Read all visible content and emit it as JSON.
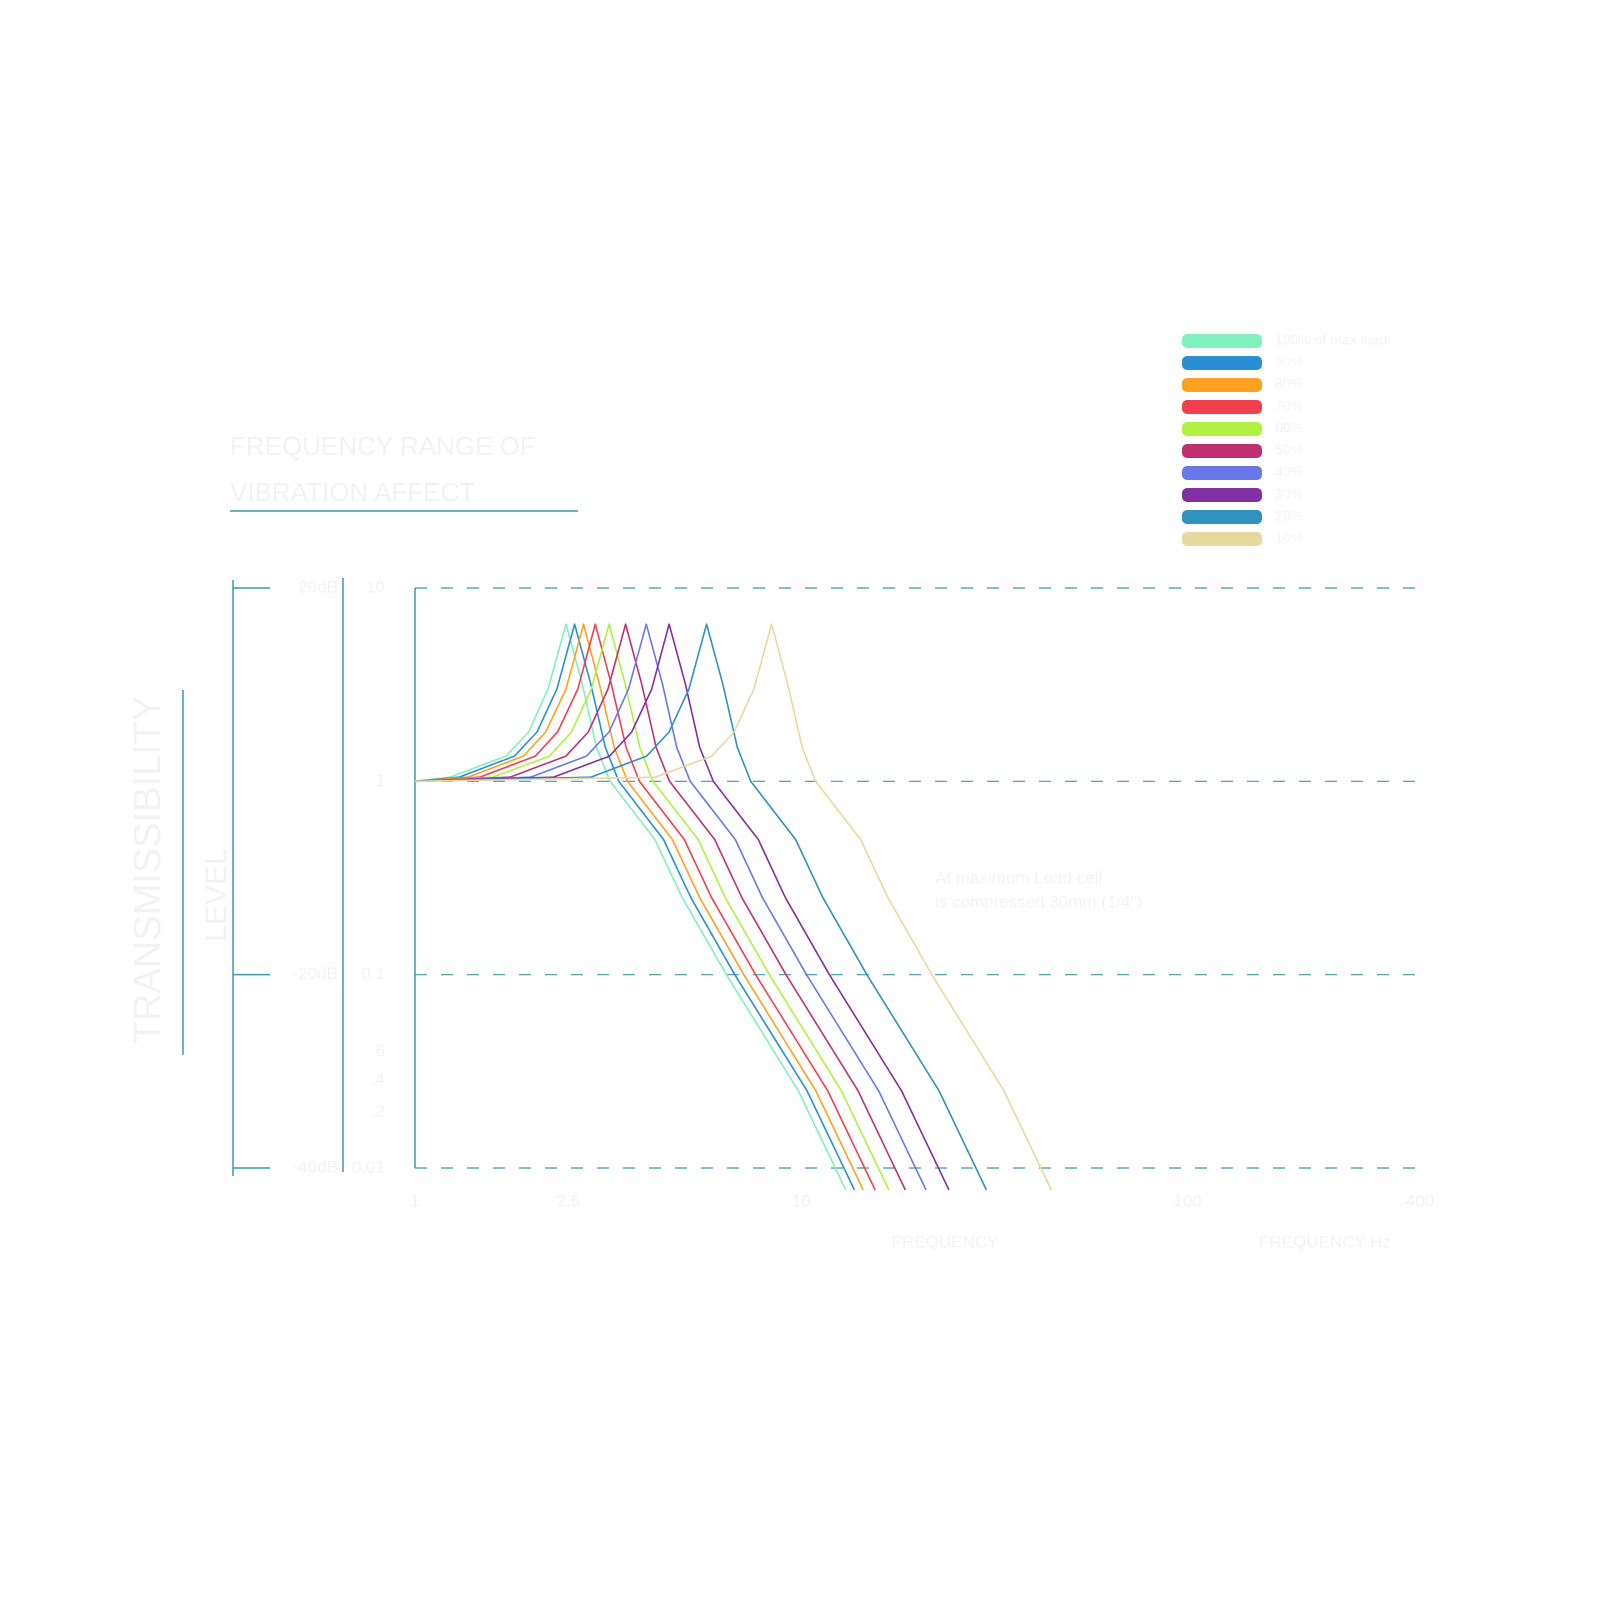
{
  "chart_data": {
    "type": "line",
    "title": "FREQUENCY RANGE OF",
    "subtitle": "VIBRATION AFFECT",
    "y_label": "TRANSMISSIBILITY",
    "y_label_2": "LEVEL",
    "x_label": "FREQUENCY",
    "x_label_2": "FREQUENCY Hz",
    "annotation": [
      "At maximum Load cell",
      "is compressed 30mm (1/4\")"
    ],
    "log_x": true,
    "log_y": true,
    "grid": true,
    "legend": "top-right",
    "xlim": [
      1,
      400
    ],
    "xticks": [
      1,
      2.5,
      10,
      100,
      400
    ],
    "ylim": [
      0.01,
      10
    ],
    "yticks": [
      10,
      1,
      0.1,
      0.01
    ],
    "minor_labels": [
      ".6",
      ".4",
      ".2"
    ],
    "dblim": [
      -40,
      20
    ],
    "dbticks": [
      {
        "value": 20,
        "label": "20dB"
      },
      {
        "value": -20,
        "label": "-20dB"
      },
      {
        "value": -40,
        "label": "-40dB"
      }
    ],
    "series": [
      {
        "name": "100% of max load",
        "color": "#80f0c0",
        "x": [
          1,
          1.23,
          1.72,
          1.97,
          2.21,
          2.46,
          2.71,
          2.95,
          3.2,
          4.18,
          4.92,
          6.4,
          9.84,
          13.04
        ],
        "values": [
          1,
          1.05,
          1.35,
          1.8,
          3.0,
          6.5,
          3.2,
          1.5,
          1.0,
          0.5,
          0.25,
          0.1,
          0.025,
          0.0077
        ]
      },
      {
        "name": "90%",
        "color": "#2a8fd0",
        "x": [
          1,
          1.3,
          1.81,
          2.07,
          2.33,
          2.59,
          2.85,
          3.11,
          3.37,
          4.4,
          5.18,
          6.73,
          10.36,
          13.73
        ],
        "values": [
          1,
          1.05,
          1.35,
          1.8,
          3.0,
          6.5,
          3.2,
          1.5,
          1.0,
          0.5,
          0.25,
          0.1,
          0.025,
          0.0077
        ]
      },
      {
        "name": "80%",
        "color": "#ffa020",
        "x": [
          1,
          1.37,
          1.91,
          2.18,
          2.46,
          2.73,
          3.0,
          3.28,
          3.55,
          4.64,
          5.46,
          7.1,
          10.92,
          14.47
        ],
        "values": [
          1,
          1.05,
          1.35,
          1.8,
          3.0,
          6.5,
          3.2,
          1.5,
          1.0,
          0.5,
          0.25,
          0.1,
          0.025,
          0.0077
        ]
      },
      {
        "name": "70%",
        "color": "#f04050",
        "x": [
          1,
          1.47,
          2.05,
          2.34,
          2.64,
          2.93,
          3.22,
          3.52,
          3.81,
          4.98,
          5.86,
          7.62,
          11.72,
          15.53
        ],
        "values": [
          1,
          1.05,
          1.35,
          1.8,
          3.0,
          6.5,
          3.2,
          1.5,
          1.0,
          0.5,
          0.25,
          0.1,
          0.025,
          0.0077
        ]
      },
      {
        "name": "60%",
        "color": "#b0f040",
        "x": [
          1,
          1.59,
          2.23,
          2.54,
          2.86,
          3.18,
          3.5,
          3.82,
          4.13,
          5.41,
          6.36,
          8.27,
          12.72,
          16.85
        ],
        "values": [
          1,
          1.05,
          1.35,
          1.8,
          3.0,
          6.5,
          3.2,
          1.5,
          1.0,
          0.5,
          0.25,
          0.1,
          0.025,
          0.0077
        ]
      },
      {
        "name": "50%",
        "color": "#c03070",
        "x": [
          1,
          1.76,
          2.46,
          2.81,
          3.16,
          3.51,
          3.86,
          4.21,
          4.56,
          5.97,
          7.02,
          9.13,
          14.04,
          18.6
        ],
        "values": [
          1,
          1.05,
          1.35,
          1.8,
          3.0,
          6.5,
          3.2,
          1.5,
          1.0,
          0.5,
          0.25,
          0.1,
          0.025,
          0.0077
        ]
      },
      {
        "name": "40%",
        "color": "#6878e8",
        "x": [
          1,
          1.99,
          2.78,
          3.18,
          3.57,
          3.97,
          4.37,
          4.76,
          5.16,
          6.75,
          7.94,
          10.32,
          15.88,
          21.04
        ],
        "values": [
          1,
          1.05,
          1.35,
          1.8,
          3.0,
          6.5,
          3.2,
          1.5,
          1.0,
          0.5,
          0.25,
          0.1,
          0.025,
          0.0077
        ]
      },
      {
        "name": "30%",
        "color": "#8030a0",
        "x": [
          1,
          2.28,
          3.19,
          3.64,
          4.1,
          4.55,
          5.01,
          5.46,
          5.92,
          7.74,
          9.1,
          11.83,
          18.2,
          24.12
        ],
        "values": [
          1,
          1.05,
          1.35,
          1.8,
          3.0,
          6.5,
          3.2,
          1.5,
          1.0,
          0.5,
          0.25,
          0.1,
          0.025,
          0.0077
        ]
      },
      {
        "name": "20%",
        "color": "#3090c0",
        "x": [
          1,
          2.85,
          3.98,
          4.55,
          5.12,
          5.69,
          6.26,
          6.83,
          7.4,
          9.67,
          11.38,
          14.79,
          22.76,
          30.16
        ],
        "values": [
          1,
          1.05,
          1.35,
          1.8,
          3.0,
          6.5,
          3.2,
          1.5,
          1.0,
          0.5,
          0.25,
          0.1,
          0.025,
          0.0077
        ]
      },
      {
        "name": "10%",
        "color": "#e8d8a0",
        "x": [
          1,
          4.19,
          5.87,
          6.7,
          7.54,
          8.38,
          9.22,
          10.06,
          10.89,
          14.25,
          16.76,
          21.79,
          33.52,
          44.41
        ],
        "values": [
          1,
          1.05,
          1.35,
          1.8,
          3.0,
          6.5,
          3.2,
          1.5,
          1.0,
          0.5,
          0.25,
          0.1,
          0.025,
          0.0077
        ]
      }
    ]
  }
}
